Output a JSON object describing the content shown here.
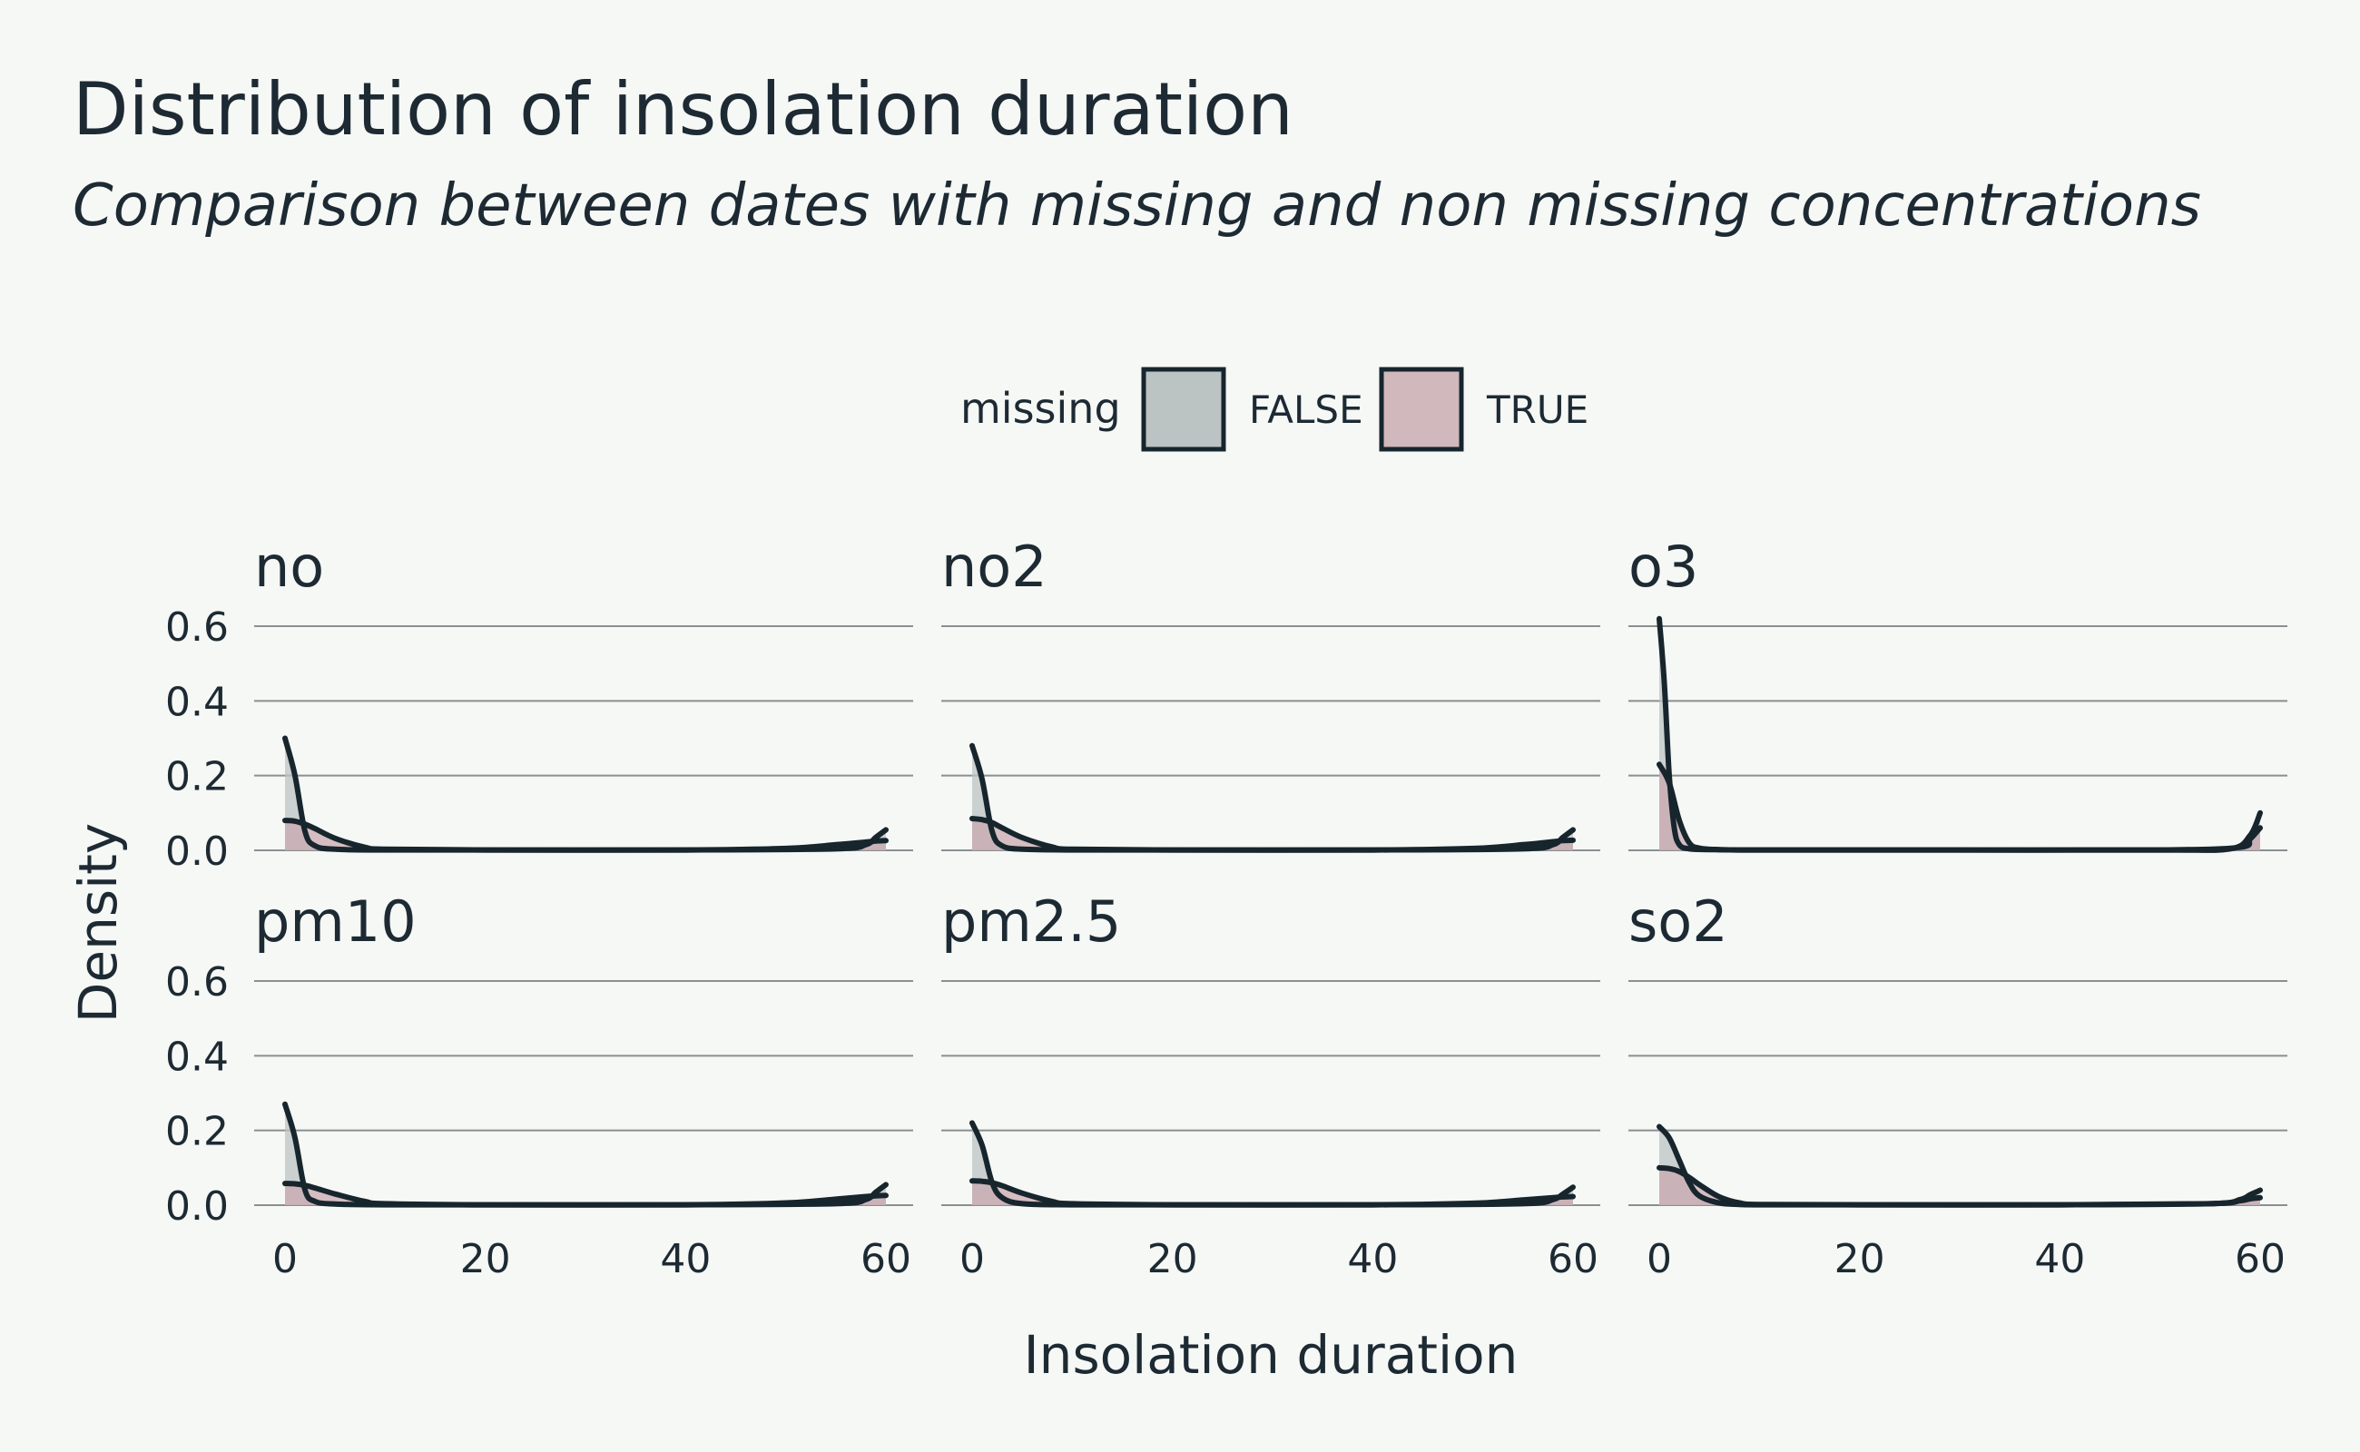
{
  "chart_data": {
    "type": "area",
    "title": "Distribution of insolation duration",
    "subtitle": "Comparison between dates with missing and non missing concentrations",
    "xlabel": "Insolation duration",
    "ylabel": "Density",
    "xlim": [
      0,
      60
    ],
    "ylim": [
      0,
      0.6
    ],
    "xticks": [
      0,
      20,
      40,
      60
    ],
    "yticks": [
      0.0,
      0.2,
      0.4,
      0.6
    ],
    "xtick_labels": [
      "0",
      "20",
      "40",
      "60"
    ],
    "ytick_labels": [
      "0.0",
      "0.2",
      "0.4",
      "0.6"
    ],
    "grid": "horizontal",
    "legend": {
      "title": "missing",
      "placement": "top",
      "entries": [
        {
          "label": "FALSE",
          "color": "#bcc3c3"
        },
        {
          "label": "TRUE",
          "color": "#d0b8bc"
        }
      ]
    },
    "colors": {
      "line": "#17252d",
      "false_fill": "#bcc3c3",
      "true_fill": "#c9a9b0"
    },
    "facets": [
      {
        "name": "no",
        "series": [
          {
            "name": "FALSE",
            "x": [
              0,
              1,
              2,
              3,
              5,
              10,
              20,
              40,
              55,
              58,
              59,
              60
            ],
            "y": [
              0.3,
              0.2,
              0.05,
              0.012,
              0.003,
              0.001,
              0.001,
              0.001,
              0.004,
              0.015,
              0.035,
              0.055
            ]
          },
          {
            "name": "TRUE",
            "x": [
              0,
              1,
              2,
              3,
              5,
              8,
              10,
              20,
              40,
              50,
              55,
              58,
              59,
              60
            ],
            "y": [
              0.08,
              0.078,
              0.07,
              0.058,
              0.032,
              0.008,
              0.003,
              0.001,
              0.001,
              0.005,
              0.015,
              0.022,
              0.025,
              0.026
            ]
          }
        ]
      },
      {
        "name": "no2",
        "series": [
          {
            "name": "FALSE",
            "x": [
              0,
              1,
              2,
              3,
              5,
              10,
              20,
              40,
              55,
              58,
              59,
              60
            ],
            "y": [
              0.28,
              0.19,
              0.05,
              0.012,
              0.003,
              0.001,
              0.001,
              0.001,
              0.004,
              0.015,
              0.035,
              0.055
            ]
          },
          {
            "name": "TRUE",
            "x": [
              0,
              1,
              2,
              3,
              5,
              8,
              10,
              20,
              40,
              50,
              55,
              58,
              59,
              60
            ],
            "y": [
              0.085,
              0.082,
              0.074,
              0.06,
              0.034,
              0.009,
              0.003,
              0.001,
              0.001,
              0.005,
              0.015,
              0.023,
              0.026,
              0.027
            ]
          }
        ]
      },
      {
        "name": "o3",
        "series": [
          {
            "name": "FALSE",
            "x": [
              0,
              0.5,
              1,
              1.5,
              2,
              3,
              5,
              10,
              30,
              50,
              57,
              59,
              60
            ],
            "y": [
              0.62,
              0.45,
              0.2,
              0.06,
              0.015,
              0.004,
              0.002,
              0.001,
              0.001,
              0.001,
              0.004,
              0.04,
              0.1
            ]
          },
          {
            "name": "TRUE",
            "x": [
              0,
              1,
              2,
              3,
              4,
              6,
              10,
              30,
              50,
              58,
              59,
              60
            ],
            "y": [
              0.23,
              0.18,
              0.08,
              0.02,
              0.006,
              0.002,
              0.001,
              0.001,
              0.001,
              0.008,
              0.03,
              0.06
            ]
          }
        ]
      },
      {
        "name": "pm10",
        "series": [
          {
            "name": "FALSE",
            "x": [
              0,
              1,
              2,
              3,
              5,
              10,
              20,
              40,
              55,
              58,
              59,
              60
            ],
            "y": [
              0.27,
              0.18,
              0.04,
              0.01,
              0.003,
              0.001,
              0.001,
              0.001,
              0.004,
              0.015,
              0.035,
              0.055
            ]
          },
          {
            "name": "TRUE",
            "x": [
              0,
              1,
              2,
              3,
              5,
              8,
              10,
              20,
              40,
              50,
              55,
              58,
              59,
              60
            ],
            "y": [
              0.058,
              0.057,
              0.053,
              0.046,
              0.03,
              0.01,
              0.004,
              0.001,
              0.001,
              0.006,
              0.016,
              0.023,
              0.025,
              0.026
            ]
          }
        ]
      },
      {
        "name": "pm2.5",
        "series": [
          {
            "name": "FALSE",
            "x": [
              0,
              1,
              2,
              3,
              5,
              10,
              20,
              40,
              55,
              58,
              59,
              60
            ],
            "y": [
              0.22,
              0.16,
              0.06,
              0.02,
              0.004,
              0.001,
              0.001,
              0.001,
              0.004,
              0.015,
              0.03,
              0.048
            ]
          },
          {
            "name": "TRUE",
            "x": [
              0,
              1,
              2,
              3,
              5,
              8,
              10,
              20,
              40,
              50,
              55,
              58,
              59,
              60
            ],
            "y": [
              0.065,
              0.064,
              0.06,
              0.052,
              0.032,
              0.01,
              0.004,
              0.001,
              0.001,
              0.005,
              0.014,
              0.02,
              0.022,
              0.023
            ]
          }
        ]
      },
      {
        "name": "so2",
        "series": [
          {
            "name": "FALSE",
            "x": [
              0,
              1,
              2,
              3,
              4,
              6,
              8,
              10,
              20,
              40,
              55,
              58,
              59,
              60
            ],
            "y": [
              0.21,
              0.18,
              0.12,
              0.06,
              0.025,
              0.006,
              0.002,
              0.001,
              0.001,
              0.001,
              0.004,
              0.015,
              0.028,
              0.04
            ]
          },
          {
            "name": "TRUE",
            "x": [
              0,
              1,
              2,
              3,
              4,
              6,
              8,
              10,
              20,
              40,
              55,
              58,
              59,
              60
            ],
            "y": [
              0.1,
              0.098,
              0.09,
              0.074,
              0.055,
              0.022,
              0.006,
              0.002,
              0.001,
              0.001,
              0.004,
              0.012,
              0.017,
              0.02
            ]
          }
        ]
      }
    ]
  }
}
